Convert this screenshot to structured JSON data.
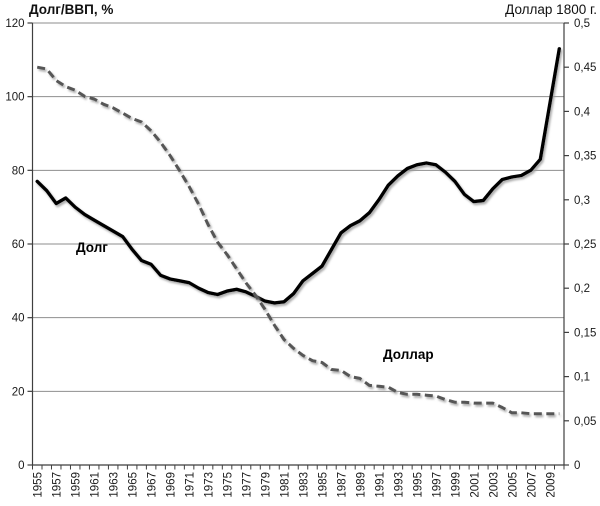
{
  "chart_data": {
    "type": "line",
    "title": "",
    "x": [
      1955,
      1956,
      1957,
      1958,
      1959,
      1960,
      1961,
      1962,
      1963,
      1964,
      1965,
      1966,
      1967,
      1968,
      1969,
      1970,
      1971,
      1972,
      1973,
      1974,
      1975,
      1976,
      1977,
      1978,
      1979,
      1980,
      1981,
      1982,
      1983,
      1984,
      1985,
      1986,
      1987,
      1988,
      1989,
      1990,
      1991,
      1992,
      1993,
      1994,
      1995,
      1996,
      1997,
      1998,
      1999,
      2000,
      2001,
      2002,
      2003,
      2004,
      2005,
      2006,
      2007,
      2008,
      2009,
      2010
    ],
    "x_tick_labels": [
      "1955",
      "1957",
      "1959",
      "1961",
      "1963",
      "1965",
      "1967",
      "1969",
      "1971",
      "1973",
      "1975",
      "1977",
      "1979",
      "1981",
      "1983",
      "1985",
      "1987",
      "1989",
      "1991",
      "1993",
      "1995",
      "1997",
      "1999",
      "2001",
      "2003",
      "2005",
      "2007",
      "2009"
    ],
    "x_label_every": 2,
    "grid": "horizontal",
    "legend": "inline-labels",
    "series": [
      {
        "name": "Долг",
        "axis": "left",
        "style": "solid",
        "color": "#000000",
        "values": [
          77,
          74.5,
          71,
          72.5,
          70,
          68,
          66.5,
          65,
          63.5,
          62,
          58.5,
          55.5,
          54.5,
          51.5,
          50.5,
          50,
          49.5,
          48,
          46.8,
          46.3,
          47.2,
          47.7,
          47,
          45.8,
          44.5,
          44,
          44.3,
          46.5,
          50,
          52,
          54,
          58.5,
          63,
          65,
          66.3,
          68.5,
          72,
          76,
          78.5,
          80.5,
          81.5,
          82,
          81.5,
          79.5,
          77,
          73.5,
          71.5,
          71.8,
          75,
          77.5,
          78.2,
          78.6,
          80,
          83,
          98,
          113
        ]
      },
      {
        "name": "Доллар",
        "axis": "right",
        "style": "dashed",
        "color": "#565656",
        "values": [
          0.45,
          0.448,
          0.435,
          0.428,
          0.424,
          0.417,
          0.414,
          0.408,
          0.404,
          0.398,
          0.392,
          0.388,
          0.378,
          0.365,
          0.35,
          0.333,
          0.315,
          0.295,
          0.272,
          0.252,
          0.238,
          0.222,
          0.206,
          0.192,
          0.176,
          0.158,
          0.142,
          0.132,
          0.124,
          0.118,
          0.116,
          0.108,
          0.107,
          0.1,
          0.098,
          0.09,
          0.089,
          0.088,
          0.082,
          0.08,
          0.08,
          0.079,
          0.078,
          0.074,
          0.071,
          0.071,
          0.07,
          0.07,
          0.07,
          0.065,
          0.059,
          0.059,
          0.058,
          0.058,
          0.058,
          0.058
        ]
      }
    ],
    "left_axis": {
      "label": "Долг/ВВП, %",
      "min": 0,
      "max": 120,
      "step": 20,
      "tick_labels": [
        "0",
        "20",
        "40",
        "60",
        "80",
        "100",
        "120"
      ]
    },
    "right_axis": {
      "label": "Доллар 1800 г.",
      "min": 0,
      "max": 0.5,
      "step": 0.05,
      "tick_labels": [
        "0",
        "0,05",
        "0,1",
        "0,15",
        "0,2",
        "0,25",
        "0,3",
        "0,35",
        "0,4",
        "0,45",
        "0,5"
      ]
    }
  },
  "colors": {
    "background": "#ffffff",
    "gridline": "#8e8e8e",
    "axis": "#3f3f3f",
    "tick_text": "#1a1a1a",
    "debt_line": "#000000",
    "dollar_line": "#565656",
    "shadow": "#9a9a9a"
  }
}
